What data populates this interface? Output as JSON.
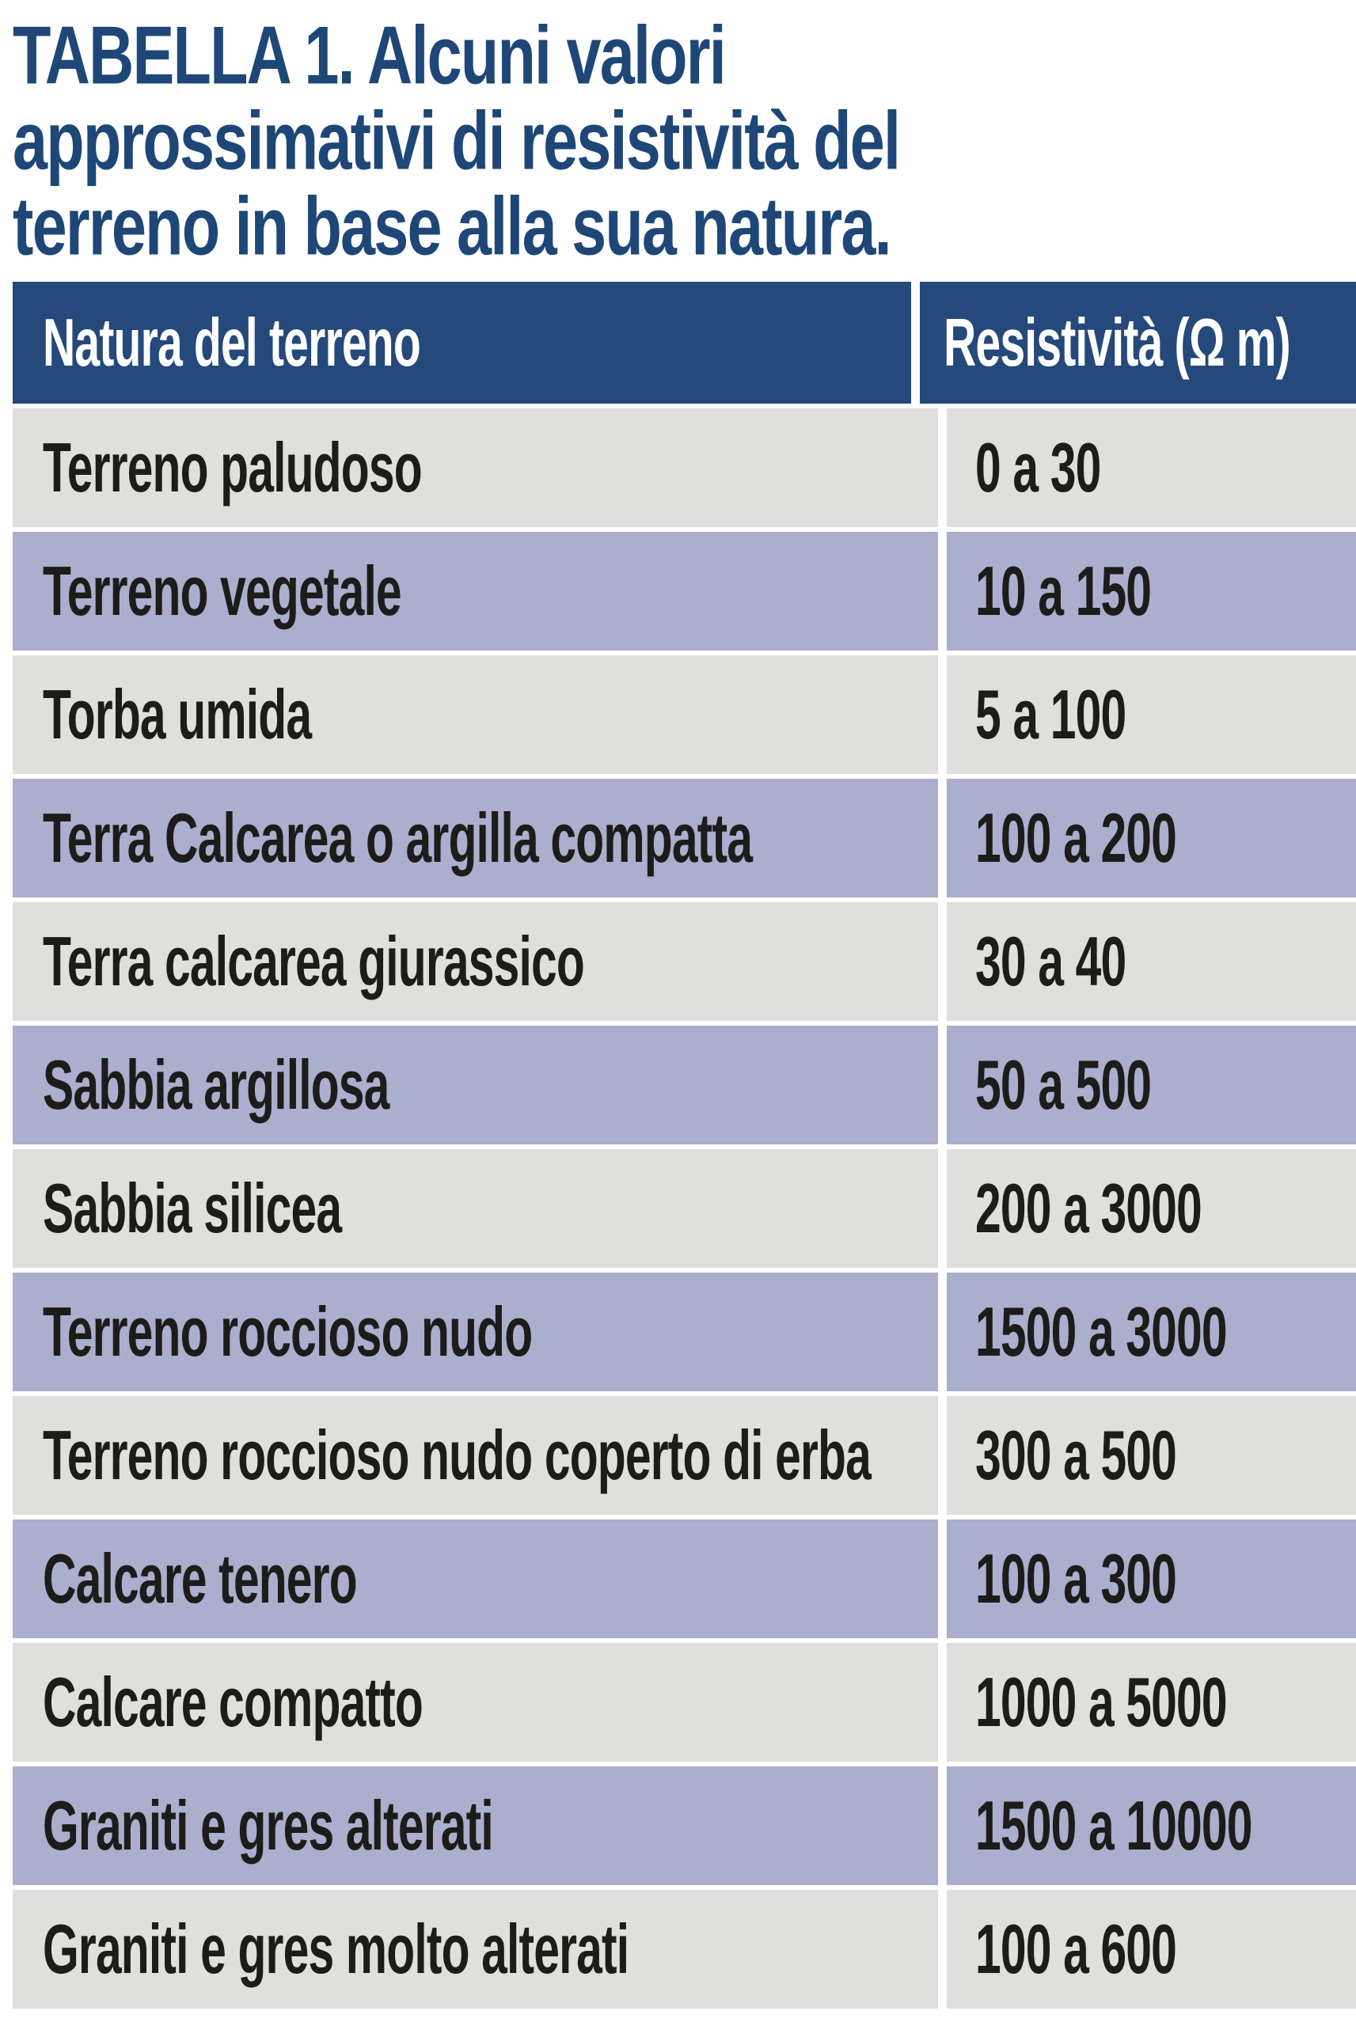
{
  "title": {
    "full": "TABELLA 1. Alcuni valori approssimativi di resistività del terreno in base alla sua natura.",
    "lines": [
      "TABELLA 1. Alcuni valori",
      "approssimativi di resistività del",
      "terreno in base alla sua natura."
    ]
  },
  "table": {
    "columns": [
      "Natura del terreno",
      "Resistività (Ω m)"
    ],
    "rows": [
      {
        "natura": "Terreno paludoso",
        "resistivita": "0 a 30"
      },
      {
        "natura": "Terreno vegetale",
        "resistivita": "10 a 150"
      },
      {
        "natura": "Torba umida",
        "resistivita": "5 a 100"
      },
      {
        "natura": "Terra Calcarea o argilla compatta",
        "resistivita": "100 a 200"
      },
      {
        "natura": "Terra calcarea giurassico",
        "resistivita": "30 a 40"
      },
      {
        "natura": "Sabbia argillosa",
        "resistivita": "50 a 500"
      },
      {
        "natura": "Sabbia silicea",
        "resistivita": "200 a 3000"
      },
      {
        "natura": "Terreno roccioso nudo",
        "resistivita": "1500 a 3000"
      },
      {
        "natura": "Terreno roccioso nudo coperto di erba",
        "resistivita": "300 a 500"
      },
      {
        "natura": "Calcare tenero",
        "resistivita": "100 a 300"
      },
      {
        "natura": "Calcare compatto",
        "resistivita": "1000 a 5000"
      },
      {
        "natura": "Graniti e gres alterati",
        "resistivita": "1500 a 10000"
      },
      {
        "natura": "Graniti e gres molto alterati",
        "resistivita": "100 a 600"
      }
    ]
  },
  "colors": {
    "title_text": "#1e4778",
    "header_background": "#24497a",
    "header_text": "#ffffff",
    "row_gray": "#dfdfdd",
    "row_lavender": "#abaecd",
    "cell_text": "#1c1c1a",
    "background": "#ffffff"
  }
}
